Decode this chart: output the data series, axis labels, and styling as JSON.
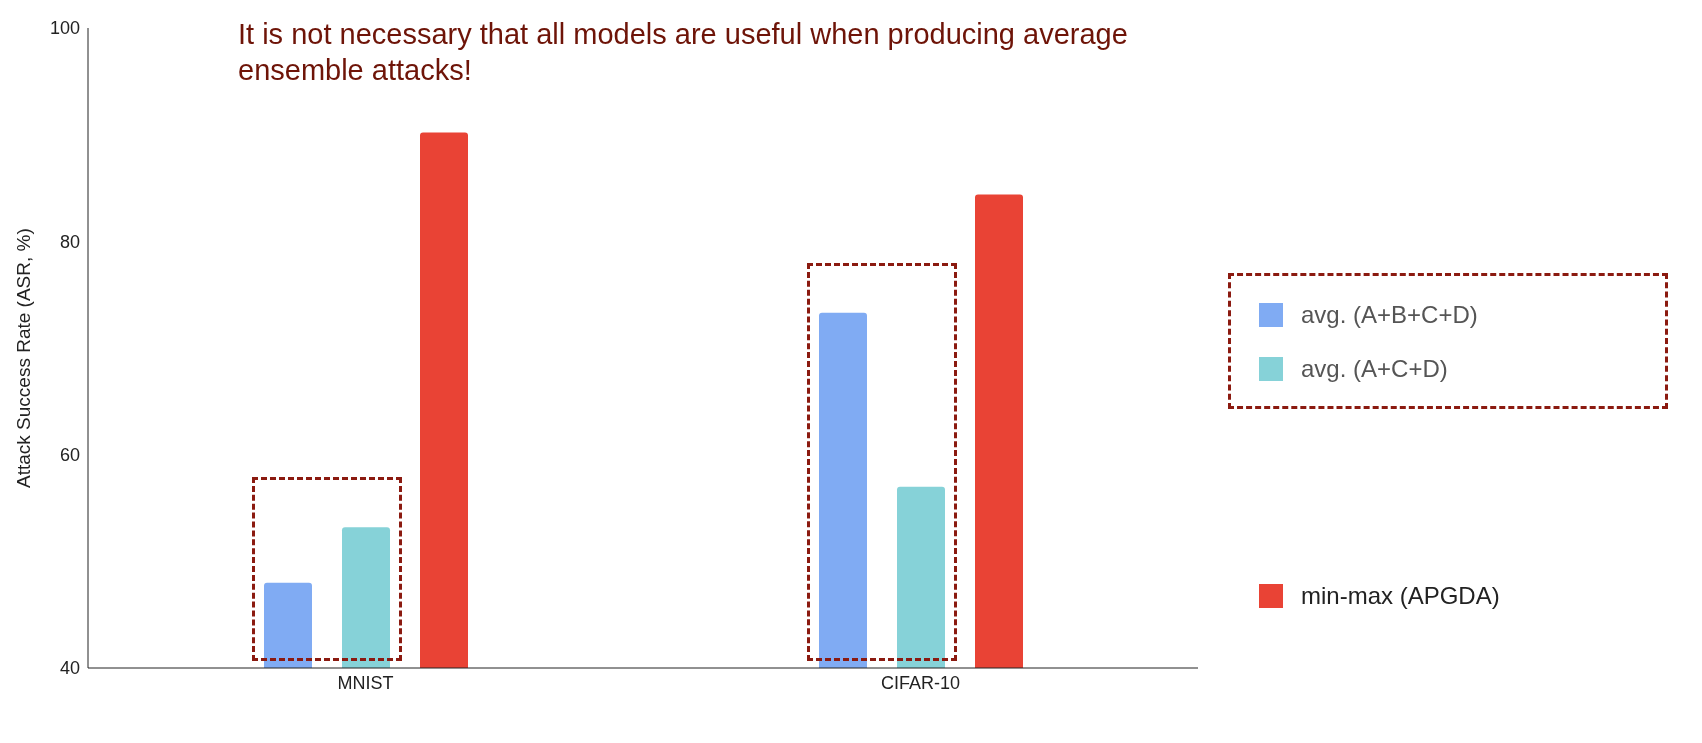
{
  "chart_data": {
    "type": "bar",
    "title": "It is not necessary that all models are useful when producing average ensemble attacks!",
    "ylabel": "Attack Success Rate (ASR, %)",
    "categories": [
      "MNIST",
      "CIFAR-10"
    ],
    "series": [
      {
        "name": "avg. (A+B+C+D)",
        "color": "#80abf3",
        "values": [
          48,
          73.3
        ]
      },
      {
        "name": "avg. (A+C+D)",
        "color": "#86d2d8",
        "values": [
          53.2,
          57
        ]
      },
      {
        "name": "min-max (APGDA)",
        "color": "#e94335",
        "values": [
          90.2,
          84.4
        ]
      }
    ],
    "ylim": [
      40,
      100
    ],
    "yticks": [
      40,
      60,
      80,
      100
    ],
    "grid": false,
    "legend": "right"
  }
}
